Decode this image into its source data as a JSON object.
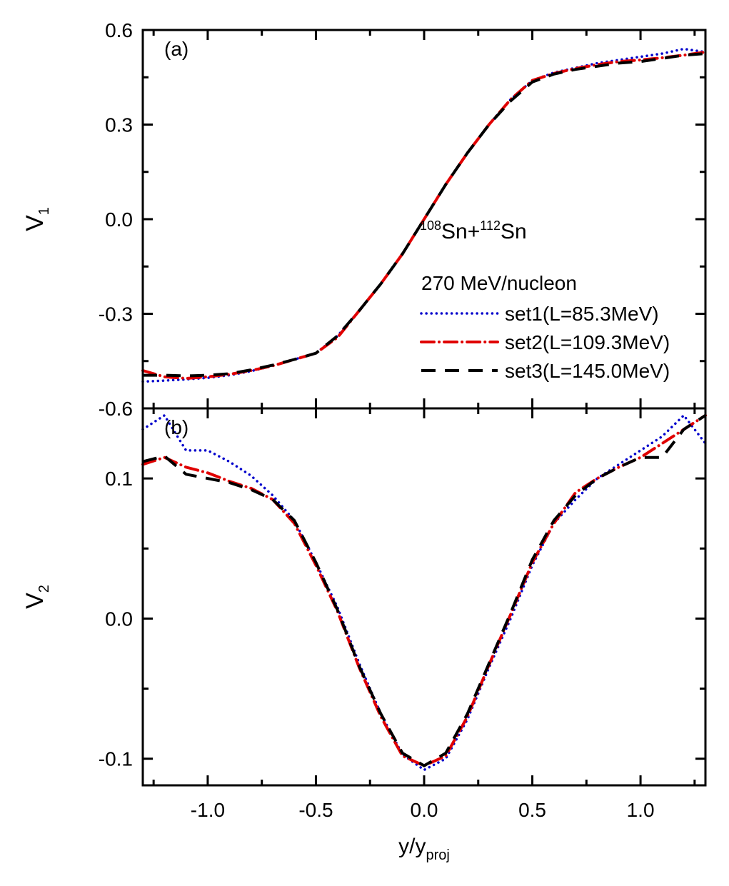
{
  "chart_data": [
    {
      "type": "line",
      "panel_label": "(a)",
      "ylabel": "V",
      "ylabel_sub": "1",
      "xlabel": "",
      "xlim": [
        -1.3,
        1.3
      ],
      "ylim": [
        -0.6,
        0.6
      ],
      "yticks": [
        -0.6,
        -0.3,
        0.0,
        0.3,
        0.6
      ],
      "ytick_labels": [
        "-0.6",
        "-0.3",
        "0.0",
        "0.3",
        "0.6"
      ],
      "annotation": {
        "reaction_pre1": "108",
        "reaction_mid1": "Sn+",
        "reaction_pre2": "112",
        "reaction_mid2": "Sn",
        "energy": "270 MeV/nucleon"
      },
      "legend_position": "center-right",
      "x": [
        -1.3,
        -1.2,
        -1.1,
        -1.0,
        -0.9,
        -0.8,
        -0.7,
        -0.6,
        -0.5,
        -0.4,
        -0.3,
        -0.2,
        -0.1,
        0.0,
        0.1,
        0.2,
        0.3,
        0.4,
        0.5,
        0.6,
        0.7,
        0.8,
        0.9,
        1.0,
        1.1,
        1.2,
        1.3
      ],
      "series": [
        {
          "name": "set1(L=85.3MeV)",
          "color": "#0000cc",
          "style": "dotted",
          "values": [
            -0.515,
            -0.512,
            -0.508,
            -0.503,
            -0.495,
            -0.482,
            -0.465,
            -0.445,
            -0.425,
            -0.37,
            -0.29,
            -0.205,
            -0.11,
            0.0,
            0.11,
            0.21,
            0.3,
            0.38,
            0.44,
            0.465,
            0.48,
            0.495,
            0.505,
            0.515,
            0.525,
            0.54,
            0.53
          ]
        },
        {
          "name": "set2(L=109.3MeV)",
          "color": "#e00000",
          "style": "dash-dot",
          "values": [
            -0.48,
            -0.5,
            -0.505,
            -0.5,
            -0.492,
            -0.48,
            -0.465,
            -0.445,
            -0.425,
            -0.375,
            -0.29,
            -0.205,
            -0.11,
            0.0,
            0.11,
            0.21,
            0.3,
            0.38,
            0.44,
            0.462,
            0.478,
            0.49,
            0.5,
            0.505,
            0.512,
            0.52,
            0.53
          ]
        },
        {
          "name": "set3(L=145.0MeV)",
          "color": "#000000",
          "style": "dashed",
          "values": [
            -0.495,
            -0.495,
            -0.497,
            -0.495,
            -0.49,
            -0.478,
            -0.463,
            -0.445,
            -0.425,
            -0.37,
            -0.29,
            -0.205,
            -0.11,
            0.0,
            0.11,
            0.21,
            0.3,
            0.375,
            0.435,
            0.46,
            0.475,
            0.485,
            0.495,
            0.5,
            0.51,
            0.52,
            0.525
          ]
        }
      ]
    },
    {
      "type": "line",
      "panel_label": "(b)",
      "ylabel": "V",
      "ylabel_sub": "2",
      "xlabel": "y/y",
      "xlabel_sub": "proj",
      "xlim": [
        -1.3,
        1.3
      ],
      "ylim": [
        -0.119,
        0.15
      ],
      "yticks": [
        -0.1,
        0.0,
        0.1
      ],
      "ytick_labels": [
        "-0.1",
        "0.0",
        "0.1"
      ],
      "xticks": [
        -1.0,
        -0.5,
        0.0,
        0.5,
        1.0
      ],
      "xtick_labels": [
        "-1.0",
        "-0.5",
        "0.0",
        "0.5",
        "1.0"
      ],
      "x": [
        -1.3,
        -1.2,
        -1.1,
        -1.0,
        -0.9,
        -0.8,
        -0.7,
        -0.6,
        -0.5,
        -0.4,
        -0.3,
        -0.2,
        -0.1,
        0.0,
        0.1,
        0.2,
        0.3,
        0.4,
        0.5,
        0.6,
        0.7,
        0.8,
        0.9,
        1.0,
        1.1,
        1.2,
        1.3
      ],
      "series": [
        {
          "name": "set1(L=85.3MeV)",
          "color": "#0000cc",
          "style": "dotted",
          "values": [
            0.135,
            0.145,
            0.12,
            0.12,
            0.112,
            0.102,
            0.088,
            0.07,
            0.04,
            0.008,
            -0.032,
            -0.068,
            -0.097,
            -0.108,
            -0.1,
            -0.072,
            -0.035,
            0.0,
            0.038,
            0.068,
            0.085,
            0.1,
            0.11,
            0.12,
            0.13,
            0.145,
            0.125
          ]
        },
        {
          "name": "set2(L=109.3MeV)",
          "color": "#e00000",
          "style": "dash-dot",
          "values": [
            0.11,
            0.115,
            0.108,
            0.104,
            0.098,
            0.093,
            0.085,
            0.068,
            0.038,
            0.005,
            -0.035,
            -0.07,
            -0.098,
            -0.105,
            -0.098,
            -0.07,
            -0.033,
            0.003,
            0.04,
            0.068,
            0.09,
            0.1,
            0.108,
            0.115,
            0.125,
            0.135,
            0.145
          ]
        },
        {
          "name": "set3(L=145.0MeV)",
          "color": "#000000",
          "style": "dashed",
          "values": [
            0.112,
            0.116,
            0.103,
            0.1,
            0.097,
            0.092,
            0.085,
            0.07,
            0.04,
            0.006,
            -0.034,
            -0.068,
            -0.096,
            -0.105,
            -0.096,
            -0.068,
            -0.032,
            0.004,
            0.042,
            0.07,
            0.088,
            0.1,
            0.108,
            0.115,
            0.115,
            0.135,
            0.145
          ]
        }
      ]
    }
  ]
}
